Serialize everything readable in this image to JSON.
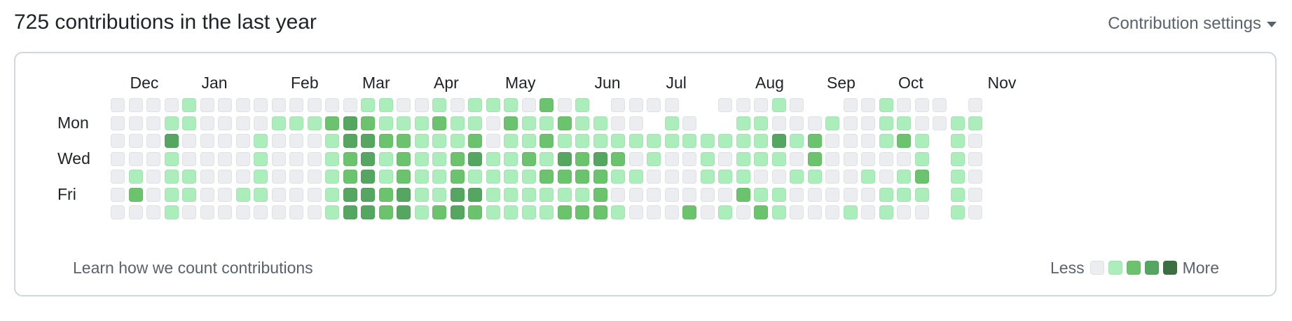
{
  "header": {
    "title": "725 contributions in the last year",
    "settings_label": "Contribution settings",
    "settings_icon": "triangle-down-icon"
  },
  "calendar": {
    "months": [
      "Dec",
      "Jan",
      "Feb",
      "Mar",
      "Apr",
      "May",
      "Jun",
      "Jul",
      "Aug",
      "Sep",
      "Oct",
      "Nov"
    ],
    "month_week_index": [
      1,
      5,
      10,
      14,
      18,
      22,
      27,
      31,
      36,
      40,
      44,
      49
    ],
    "day_labels": [
      {
        "row": 1,
        "label": "Mon"
      },
      {
        "row": 3,
        "label": "Wed"
      },
      {
        "row": 5,
        "label": "Fri"
      }
    ],
    "levels": [
      "1111211111111122112122213120111100111210011211101",
      "1112211112223432223221322322110210022111211221122",
      "1114111121112443322231223222222222222423111232021",
      "1112111121112342322342232434312112122213111112021",
      "1212211121112342322322223333221112221122112123021",
      "1312211221112443422442222223111111132211111222021",
      "1112111111112443423432222333211131213211121211021"
    ],
    "level_colors": [
      "#ebedf0",
      "#ebedf0",
      "#aceebb",
      "#6bc46d",
      "#55a660",
      "#3b6f42"
    ],
    "footer_link": "Learn how we count contributions",
    "legend_less": "Less",
    "legend_more": "More",
    "legend_colors": [
      "#ebedf0",
      "#aceebb",
      "#6bc46d",
      "#55a660",
      "#3b6f42"
    ]
  }
}
